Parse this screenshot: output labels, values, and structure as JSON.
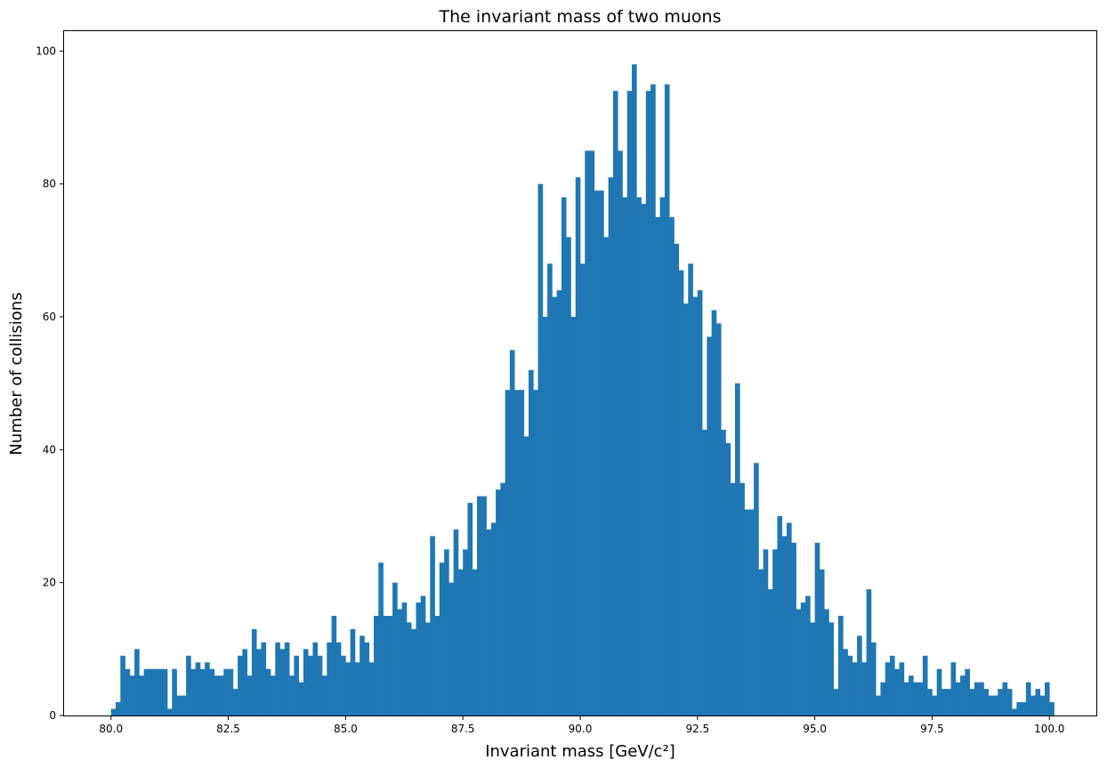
{
  "chart_data": {
    "type": "bar",
    "title": "The invariant mass of two muons",
    "xlabel": "Invariant mass [GeV/c²]",
    "ylabel": "Number of collisions",
    "xlim": [
      79.0,
      101.0
    ],
    "ylim": [
      0,
      103
    ],
    "grid": false,
    "bar_color": "#1f77b4",
    "bin_start": 80.0,
    "bin_end": 100.0,
    "bin_width": 0.1,
    "xticks": [
      "80.0",
      "82.5",
      "85.0",
      "87.5",
      "90.0",
      "92.5",
      "95.0",
      "97.5",
      "100.0"
    ],
    "yticks": [
      "0",
      "20",
      "40",
      "60",
      "80",
      "100"
    ],
    "values": [
      1,
      2,
      9,
      7,
      6,
      10,
      6,
      7,
      7,
      7,
      7,
      7,
      1,
      7,
      3,
      3,
      9,
      7,
      8,
      7,
      8,
      7,
      6,
      6,
      7,
      7,
      4,
      9,
      10,
      6,
      13,
      10,
      11,
      7,
      6,
      11,
      10,
      11,
      6,
      9,
      5,
      10,
      9,
      11,
      9,
      6,
      11,
      15,
      11,
      9,
      8,
      13,
      8,
      12,
      11,
      8,
      15,
      23,
      15,
      15,
      20,
      16,
      17,
      14,
      13,
      17,
      18,
      14,
      27,
      15,
      23,
      25,
      20,
      28,
      22,
      25,
      32,
      22,
      33,
      33,
      28,
      29,
      34,
      35,
      49,
      55,
      49,
      49,
      42,
      52,
      49,
      80,
      60,
      68,
      63,
      64,
      78,
      72,
      60,
      81,
      68,
      85,
      85,
      79,
      79,
      72,
      81,
      94,
      85,
      78,
      94,
      98,
      78,
      77,
      94,
      95,
      75,
      78,
      95,
      75,
      71,
      67,
      62,
      68,
      63,
      64,
      43,
      57,
      61,
      59,
      43,
      41,
      35,
      50,
      35,
      31,
      31,
      38,
      22,
      25,
      19,
      25,
      30,
      27,
      29,
      26,
      16,
      17,
      18,
      14,
      26,
      22,
      16,
      14,
      4,
      15,
      10,
      9,
      8,
      12,
      8,
      19,
      11,
      3,
      5,
      8,
      9,
      7,
      8,
      5,
      6,
      5,
      5,
      9,
      4,
      3,
      7,
      4,
      4,
      8,
      5,
      6,
      7,
      4,
      5,
      5,
      4,
      3,
      3,
      4,
      5,
      4,
      1,
      2,
      2,
      5,
      3,
      4,
      3,
      5,
      2
    ]
  }
}
